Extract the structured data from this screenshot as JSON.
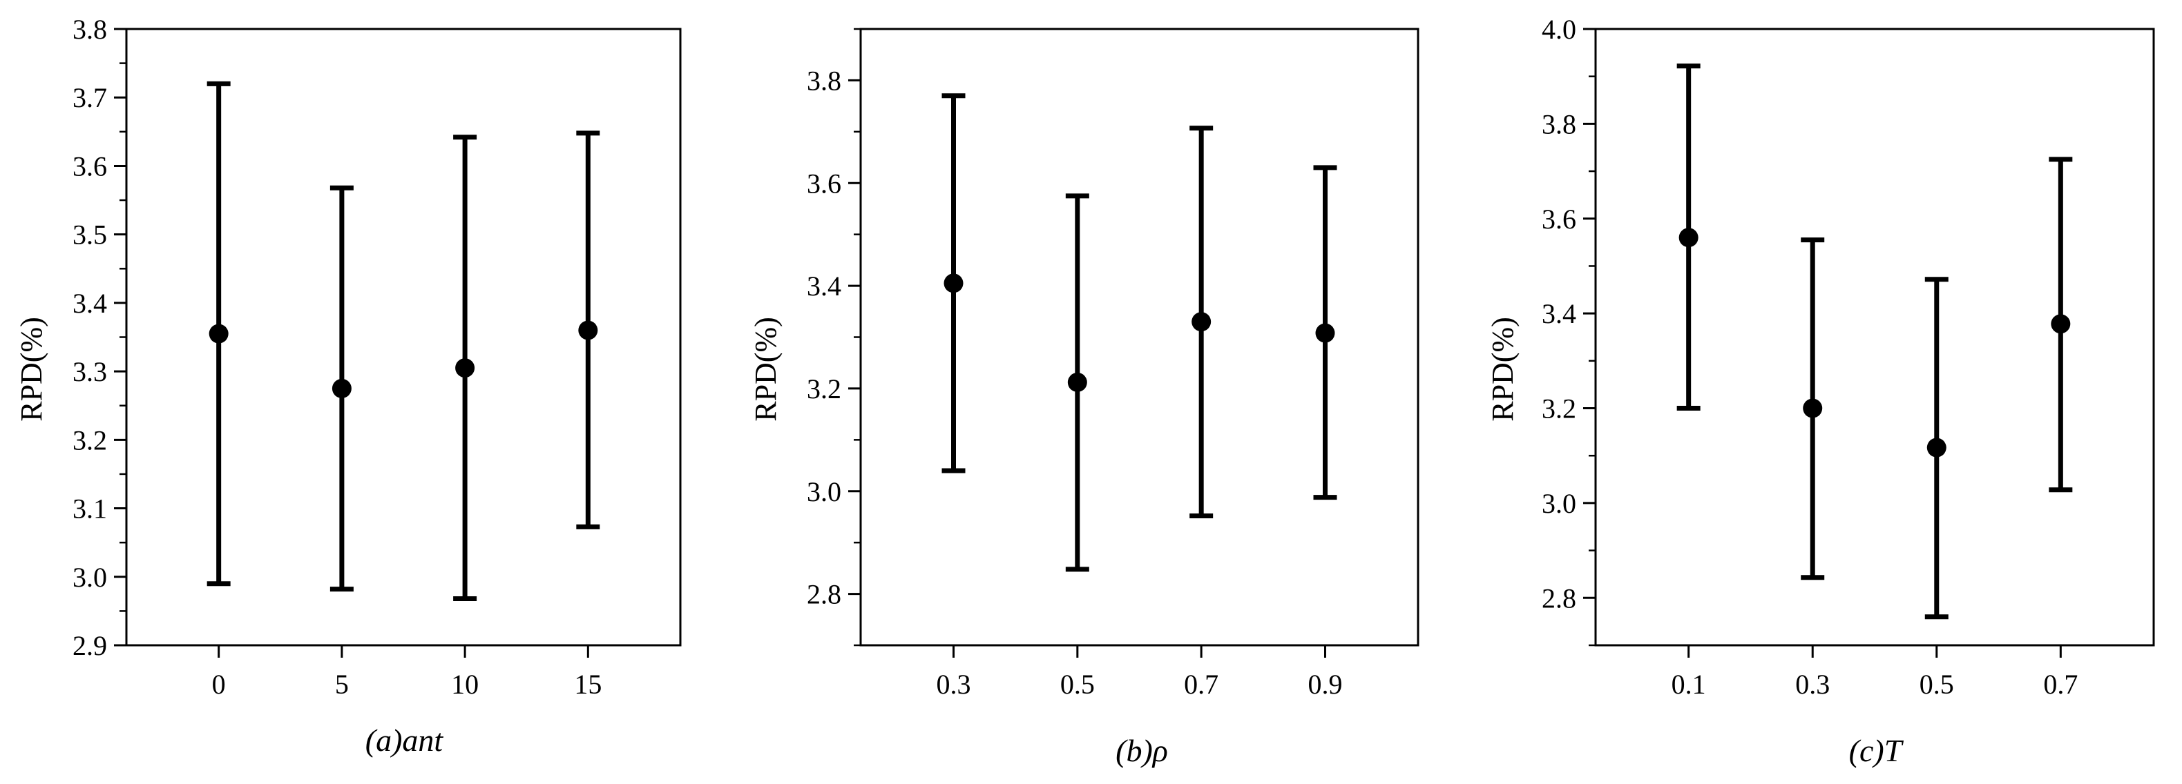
{
  "chart_data": [
    {
      "type": "scatter",
      "caption_prefix": "(a)",
      "caption_var": "ant",
      "ylabel": "RPD(%)",
      "categories": [
        "0",
        "5",
        "10",
        "15"
      ],
      "ylim": [
        2.9,
        3.8
      ],
      "yticks": [
        "2.9",
        "3.0",
        "3.1",
        "3.2",
        "3.3",
        "3.4",
        "3.5",
        "3.6",
        "3.7",
        "3.8"
      ],
      "series": [
        {
          "values": [
            3.355,
            3.275,
            3.305,
            3.36
          ],
          "error_low": [
            2.99,
            2.982,
            2.968,
            3.073
          ],
          "error_high": [
            3.72,
            3.568,
            3.642,
            3.648
          ]
        }
      ],
      "grid": false,
      "marker_color": "#000000"
    },
    {
      "type": "scatter",
      "caption_prefix": "(b)",
      "caption_var": "ρ",
      "ylabel": "RPD(%)",
      "categories": [
        "0.3",
        "0.5",
        "0.7",
        "0.9"
      ],
      "ylim": [
        2.7,
        3.9
      ],
      "yticks": [
        "2.8",
        "3.0",
        "3.2",
        "3.4",
        "3.6",
        "3.8"
      ],
      "series": [
        {
          "values": [
            3.405,
            3.212,
            3.33,
            3.308
          ],
          "error_low": [
            3.04,
            2.848,
            2.952,
            2.988
          ],
          "error_high": [
            3.77,
            3.575,
            3.707,
            3.63
          ]
        }
      ],
      "grid": false,
      "marker_color": "#000000"
    },
    {
      "type": "scatter",
      "caption_prefix": "(c)",
      "caption_var": "T",
      "ylabel": "RPD(%)",
      "categories": [
        "0.1",
        "0.3",
        "0.5",
        "0.7"
      ],
      "ylim": [
        2.7,
        4.0
      ],
      "yticks": [
        "2.8",
        "3.0",
        "3.2",
        "3.4",
        "3.6",
        "3.8",
        "4.0"
      ],
      "series": [
        {
          "values": [
            3.56,
            3.2,
            3.117,
            3.378
          ],
          "error_low": [
            3.2,
            2.843,
            2.76,
            3.028
          ],
          "error_high": [
            3.922,
            3.555,
            3.472,
            3.725
          ]
        }
      ],
      "grid": false,
      "marker_color": "#000000"
    }
  ]
}
